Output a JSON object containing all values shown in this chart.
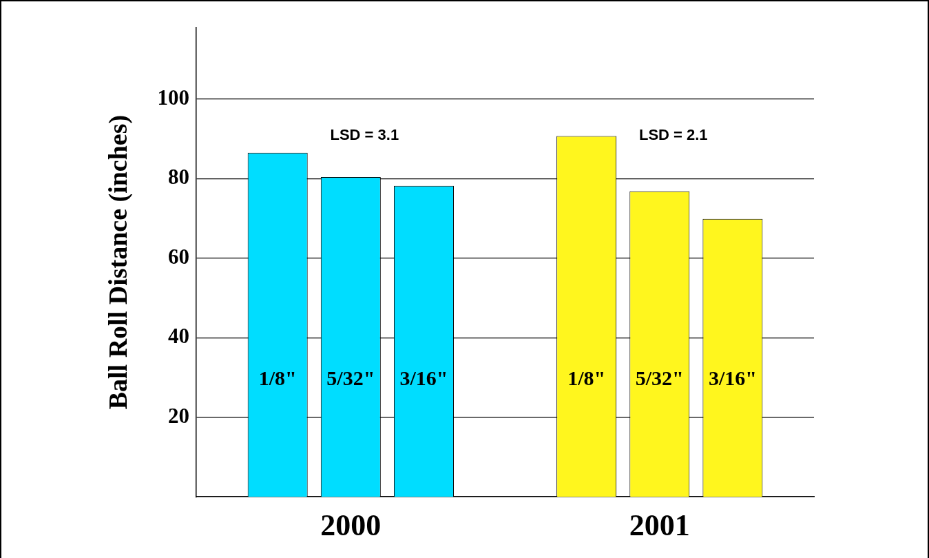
{
  "chart_data": {
    "type": "bar",
    "ylabel": "Ball Roll Distance (inches)",
    "categories": [
      "2000",
      "2001"
    ],
    "series": [
      {
        "name": "1/8\"",
        "colors": [
          "#00ddff",
          "#fff61e"
        ],
        "values": [
          86.5,
          90.7
        ]
      },
      {
        "name": "5/32\"",
        "colors": [
          "#00ddff",
          "#fff61e"
        ],
        "values": [
          80.4,
          76.8
        ]
      },
      {
        "name": "3/16\"",
        "colors": [
          "#00ddff",
          "#fff61e"
        ],
        "values": [
          78.2,
          69.9
        ]
      }
    ],
    "ylim": [
      0,
      118
    ],
    "yticks": [
      20,
      40,
      60,
      80,
      100
    ],
    "grid": "y",
    "legend": false,
    "annotations": [
      "LSD = 3.1",
      "LSD = 2.1"
    ]
  }
}
